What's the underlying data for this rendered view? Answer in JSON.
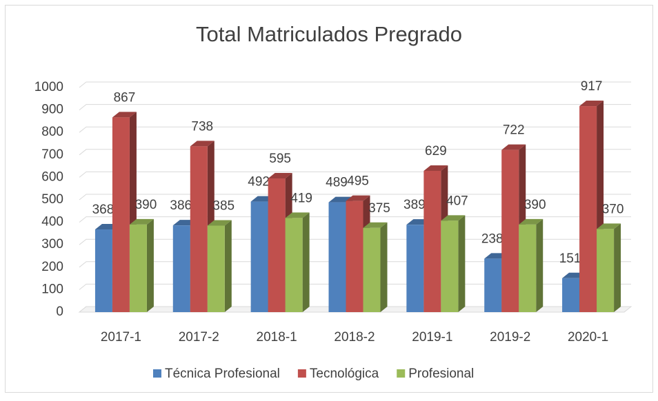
{
  "chart_data": {
    "type": "bar3d",
    "title": "Total Matriculados Pregrado",
    "categories": [
      "2017-1",
      "2017-2",
      "2018-1",
      "2018-2",
      "2019-1",
      "2019-2",
      "2020-1"
    ],
    "series": [
      {
        "name": "Técnica Profesional",
        "color": "#4f81bd",
        "values": [
          368,
          386,
          492,
          489,
          389,
          238,
          151
        ]
      },
      {
        "name": "Tecnológica",
        "color": "#c0504d",
        "values": [
          867,
          738,
          595,
          495,
          629,
          722,
          917
        ]
      },
      {
        "name": "Profesional",
        "color": "#9bbb59",
        "values": [
          390,
          385,
          419,
          375,
          407,
          390,
          370
        ]
      }
    ],
    "ylim": [
      0,
      1000
    ],
    "yticks": [
      0,
      100,
      200,
      300,
      400,
      500,
      600,
      700,
      800,
      900,
      1000
    ],
    "grid": true,
    "legend": "bottom"
  }
}
